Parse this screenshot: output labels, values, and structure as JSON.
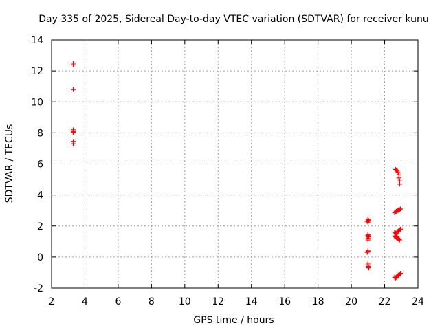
{
  "chart_data": {
    "type": "scatter",
    "title": "Day 335 of 2025, Sidereal Day-to-day VTEC variation (SDTVAR) for receiver kunu",
    "xlabel": "GPS time / hours",
    "ylabel": "SDTVAR / TECUs",
    "xlim": [
      2,
      24
    ],
    "ylim": [
      -2,
      14
    ],
    "xticks": [
      2,
      4,
      6,
      8,
      10,
      12,
      14,
      16,
      18,
      20,
      22,
      24
    ],
    "yticks": [
      -2,
      0,
      2,
      4,
      6,
      8,
      10,
      12,
      14
    ],
    "grid": true,
    "marker": "plus",
    "color": "#ff0000",
    "series": [
      {
        "name": "SDTVAR",
        "points": [
          [
            3.3,
            12.5
          ],
          [
            3.3,
            12.4
          ],
          [
            3.3,
            10.8
          ],
          [
            3.3,
            8.2
          ],
          [
            3.3,
            8.1
          ],
          [
            3.3,
            8.05
          ],
          [
            3.3,
            8.0
          ],
          [
            3.3,
            7.45
          ],
          [
            3.3,
            7.3
          ],
          [
            21.0,
            2.45
          ],
          [
            21.0,
            2.4
          ],
          [
            21.05,
            2.35
          ],
          [
            20.95,
            2.3
          ],
          [
            21.0,
            2.25
          ],
          [
            21.0,
            1.45
          ],
          [
            21.0,
            1.4
          ],
          [
            20.95,
            1.35
          ],
          [
            21.05,
            1.3
          ],
          [
            21.0,
            1.2
          ],
          [
            21.0,
            1.1
          ],
          [
            21.0,
            0.4
          ],
          [
            21.0,
            0.35
          ],
          [
            20.95,
            0.3
          ],
          [
            21.0,
            -0.4
          ],
          [
            21.0,
            -0.5
          ],
          [
            21.0,
            -0.6
          ],
          [
            21.05,
            -0.7
          ],
          [
            22.65,
            5.65
          ],
          [
            22.7,
            5.6
          ],
          [
            22.75,
            5.55
          ],
          [
            22.8,
            5.45
          ],
          [
            22.85,
            5.3
          ],
          [
            22.85,
            5.1
          ],
          [
            22.9,
            4.9
          ],
          [
            22.9,
            4.7
          ],
          [
            22.6,
            2.85
          ],
          [
            22.65,
            2.9
          ],
          [
            22.7,
            2.95
          ],
          [
            22.75,
            3.0
          ],
          [
            22.8,
            3.0
          ],
          [
            22.85,
            3.05
          ],
          [
            22.9,
            3.05
          ],
          [
            22.95,
            3.1
          ],
          [
            22.6,
            1.6
          ],
          [
            22.65,
            1.55
          ],
          [
            22.7,
            1.5
          ],
          [
            22.75,
            1.6
          ],
          [
            22.8,
            1.65
          ],
          [
            22.85,
            1.7
          ],
          [
            22.9,
            1.75
          ],
          [
            22.95,
            1.8
          ],
          [
            22.6,
            1.35
          ],
          [
            22.65,
            1.3
          ],
          [
            22.7,
            1.25
          ],
          [
            22.75,
            1.3
          ],
          [
            22.8,
            1.2
          ],
          [
            22.85,
            1.15
          ],
          [
            22.9,
            1.1
          ],
          [
            22.6,
            -1.3
          ],
          [
            22.65,
            -1.35
          ],
          [
            22.7,
            -1.3
          ],
          [
            22.75,
            -1.25
          ],
          [
            22.8,
            -1.2
          ],
          [
            22.85,
            -1.15
          ],
          [
            22.9,
            -1.1
          ],
          [
            22.95,
            -1.05
          ]
        ]
      }
    ]
  }
}
